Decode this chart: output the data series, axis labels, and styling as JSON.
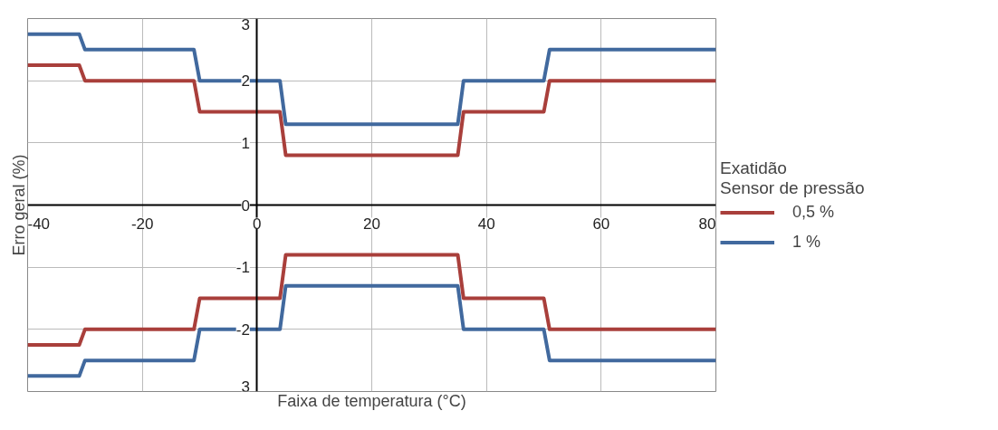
{
  "chart_data": {
    "type": "line",
    "xlabel": "Faixa de temperatura (°C)",
    "ylabel": "Erro geral (%)",
    "legend_title": "Exatidão\nSensor de pressão",
    "x": [
      -40,
      -31,
      -30,
      -11,
      -10,
      4,
      5,
      35,
      36,
      50,
      51,
      80
    ],
    "series": [
      {
        "name": "0,5 %",
        "color": "#a93f3b",
        "values": [
          2.25,
          2.25,
          2,
          2,
          1.5,
          1.5,
          0.8,
          0.8,
          1.5,
          1.5,
          2,
          2
        ]
      },
      {
        "name": "1 %",
        "color": "#41699e",
        "values": [
          2.75,
          2.75,
          2.5,
          2.5,
          2,
          2,
          1.3,
          1.3,
          2,
          2,
          2.5,
          2.5
        ]
      },
      {
        "color": "#a93f3b",
        "values": [
          -2.25,
          -2.25,
          -2,
          -2,
          -1.5,
          -1.5,
          -0.8,
          -0.8,
          -1.5,
          -1.5,
          -2,
          -2
        ]
      },
      {
        "color": "#41699e",
        "values": [
          -2.75,
          -2.75,
          -2.5,
          -2.5,
          -2,
          -2,
          -1.3,
          -1.3,
          -2,
          -2,
          -2.5,
          -2.5
        ]
      }
    ],
    "xlim": [
      -40,
      80
    ],
    "ylim": [
      -3,
      3
    ],
    "xticks": [
      -40,
      -20,
      0,
      20,
      40,
      60,
      80
    ],
    "yticks": [
      {
        "value": -3,
        "label": "3"
      },
      -2,
      -1,
      0,
      1,
      2,
      3
    ],
    "grid": true,
    "legend": "right",
    "marker": "none",
    "line_style": "solid"
  }
}
